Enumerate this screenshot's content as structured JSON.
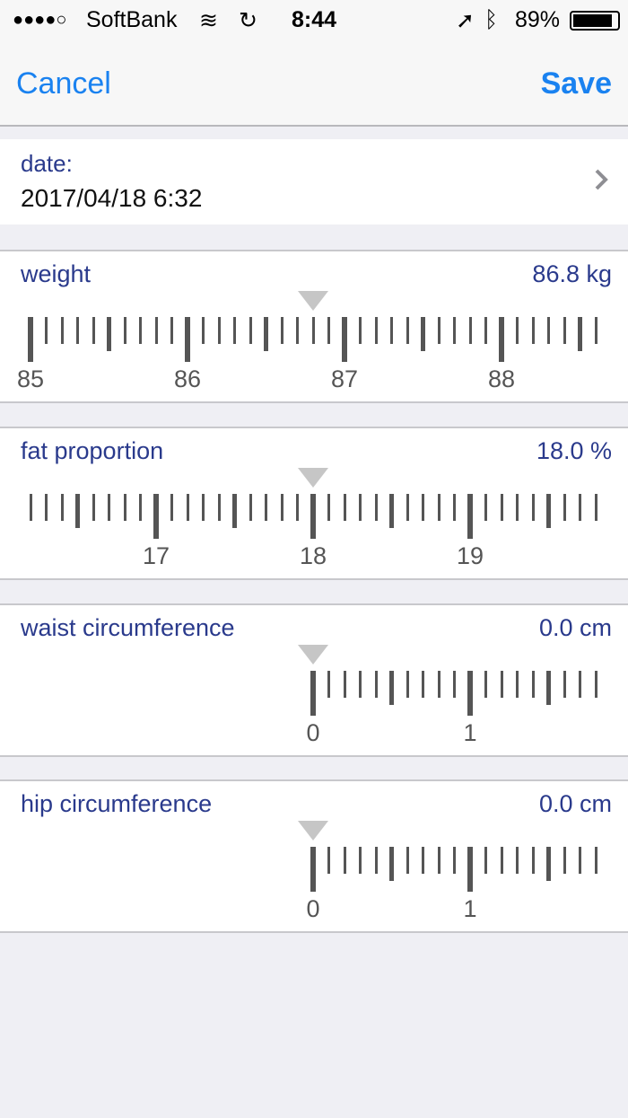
{
  "status_bar": {
    "signal": "●●●●○",
    "carrier": "SoftBank",
    "time": "8:44",
    "battery": "89%",
    "icons": [
      "wifi-icon",
      "sync-icon",
      "location-icon",
      "bluetooth-icon",
      "battery-icon"
    ]
  },
  "nav": {
    "cancel": "Cancel",
    "save": "Save",
    "accent": "#1a82f0"
  },
  "date": {
    "label": "date:",
    "value": "2017/04/18 6:32"
  },
  "sections": [
    {
      "label": "weight",
      "value": "86.8 kg",
      "current": 86.8,
      "min": null
    },
    {
      "label": "fat proportion",
      "value": "18.0 %",
      "current": 18.0,
      "min": null
    },
    {
      "label": "waist circumference",
      "value": "0.0 cm",
      "current": 0.0,
      "min": 0
    },
    {
      "label": "hip circumference",
      "value": "0.0 cm",
      "current": 0.0,
      "min": 0
    }
  ]
}
